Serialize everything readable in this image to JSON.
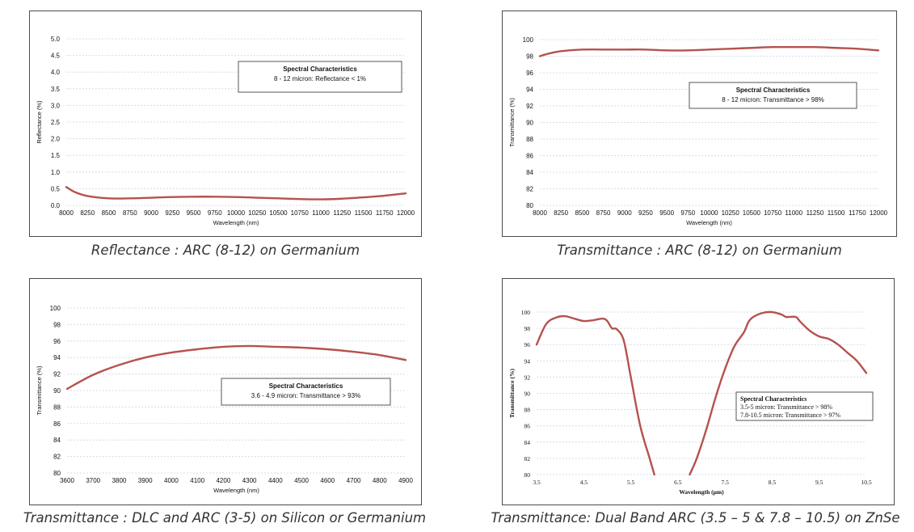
{
  "chart_data": [
    {
      "type": "line",
      "xlabel": "Wavelength (nm)",
      "ylabel": "Reflectance (%)",
      "xlim": [
        8000,
        12000
      ],
      "ylim": [
        0,
        5
      ],
      "xticks": [
        "8000",
        "8250",
        "8500",
        "8750",
        "9000",
        "9250",
        "9500",
        "9750",
        "10000",
        "10250",
        "10500",
        "10750",
        "11000",
        "11250",
        "11500",
        "11750",
        "12000"
      ],
      "yticks": [
        "0.0",
        "0.5",
        "1.0",
        "1.5",
        "2.0",
        "2.5",
        "3.0",
        "3.5",
        "4.0",
        "4.5",
        "5.0"
      ],
      "grid": true,
      "series": [
        {
          "x": [
            8000,
            8100,
            8250,
            8500,
            8750,
            9000,
            9250,
            9500,
            9750,
            10000,
            10250,
            10500,
            10750,
            11000,
            11250,
            11500,
            11750,
            12000
          ],
          "y": [
            0.55,
            0.4,
            0.28,
            0.21,
            0.21,
            0.23,
            0.25,
            0.26,
            0.26,
            0.25,
            0.23,
            0.21,
            0.19,
            0.18,
            0.2,
            0.24,
            0.29,
            0.36
          ]
        }
      ],
      "annotation": {
        "title": "Spectral Characteristics",
        "lines": [
          "8 - 12 micron: Reflectance < 1%"
        ]
      },
      "caption": "Reflectance : ARC (8-12) on Germanium"
    },
    {
      "type": "line",
      "xlabel": "Wavelength (nm)",
      "ylabel": "Transmittance (%)",
      "xlim": [
        8000,
        12000
      ],
      "ylim": [
        80,
        100
      ],
      "xticks": [
        "8000",
        "8250",
        "8500",
        "8750",
        "9000",
        "9250",
        "9500",
        "9750",
        "10000",
        "10250",
        "10500",
        "10750",
        "11000",
        "11250",
        "11500",
        "11750",
        "12000"
      ],
      "yticks": [
        "80",
        "82",
        "84",
        "86",
        "88",
        "90",
        "92",
        "94",
        "96",
        "98",
        "100"
      ],
      "grid": true,
      "series": [
        {
          "x": [
            8000,
            8100,
            8250,
            8500,
            8750,
            9000,
            9250,
            9500,
            9750,
            10000,
            10250,
            10500,
            10750,
            11000,
            11250,
            11500,
            11750,
            12000
          ],
          "y": [
            98.0,
            98.3,
            98.6,
            98.8,
            98.8,
            98.8,
            98.8,
            98.7,
            98.7,
            98.8,
            98.9,
            99.0,
            99.1,
            99.1,
            99.1,
            99.0,
            98.9,
            98.7
          ]
        }
      ],
      "annotation": {
        "title": "Spectral Characteristics",
        "lines": [
          "8 - 12 micron: Transmittance > 98%"
        ]
      },
      "caption": "Transmittance : ARC (8-12) on Germanium"
    },
    {
      "type": "line",
      "xlabel": "Wavelength (nm)",
      "ylabel": "Transmittance (%)",
      "xlim": [
        3600,
        4900
      ],
      "ylim": [
        80,
        100
      ],
      "xticks": [
        "3600",
        "3700",
        "3800",
        "3900",
        "4000",
        "4100",
        "4200",
        "4300",
        "4400",
        "4500",
        "4600",
        "4700",
        "4800",
        "4900"
      ],
      "yticks": [
        "80",
        "82",
        "84",
        "86",
        "88",
        "90",
        "92",
        "94",
        "96",
        "98",
        "100"
      ],
      "grid": true,
      "series": [
        {
          "x": [
            3600,
            3700,
            3800,
            3900,
            4000,
            4100,
            4200,
            4300,
            4400,
            4500,
            4600,
            4700,
            4800,
            4900
          ],
          "y": [
            90.2,
            91.9,
            93.1,
            94.0,
            94.6,
            95.0,
            95.3,
            95.4,
            95.3,
            95.2,
            95.0,
            94.7,
            94.3,
            93.7
          ]
        }
      ],
      "annotation": {
        "title": "Spectral Characteristics",
        "lines": [
          "3.6 - 4.9 micron: Transmittance > 93%"
        ]
      },
      "caption": "Transmittance : DLC  and ARC (3-5) on Silicon or  Germanium"
    },
    {
      "type": "line",
      "xlabel": "Wavelength (μm)",
      "ylabel": "Transmittance (%)",
      "xlim": [
        3.5,
        10.5
      ],
      "ylim": [
        80,
        100
      ],
      "xticks": [
        "3.5",
        "4.5",
        "5.5",
        "6.5",
        "7.5",
        "8.5",
        "9.5",
        "10.5"
      ],
      "yticks": [
        "80",
        "82",
        "84",
        "86",
        "88",
        "90",
        "92",
        "94",
        "96",
        "98",
        "100"
      ],
      "grid": true,
      "series": [
        {
          "x": [
            3.5,
            3.7,
            3.9,
            4.1,
            4.3,
            4.5,
            4.7,
            4.9,
            5.0,
            5.1,
            5.2,
            5.35,
            5.5,
            5.7,
            5.9,
            6.0
          ],
          "y": [
            96.0,
            98.5,
            99.3,
            99.5,
            99.2,
            98.9,
            99.0,
            99.2,
            98.9,
            98.0,
            97.9,
            96.5,
            92.0,
            86.0,
            82.0,
            80.0
          ]
        },
        {
          "x": [
            6.75,
            6.9,
            7.1,
            7.3,
            7.5,
            7.7,
            7.9,
            8.0,
            8.1,
            8.3,
            8.5,
            8.7,
            8.8,
            9.0,
            9.1,
            9.3,
            9.5,
            9.7,
            9.9,
            10.1,
            10.3,
            10.5
          ],
          "y": [
            80.0,
            82.0,
            85.5,
            89.5,
            93.0,
            95.8,
            97.5,
            98.8,
            99.4,
            99.9,
            100.0,
            99.7,
            99.4,
            99.4,
            98.8,
            97.7,
            97.0,
            96.7,
            96.0,
            95.0,
            94.0,
            92.5
          ]
        }
      ],
      "annotation": {
        "title": "Spectral Characteristics",
        "lines": [
          "3.5-5 micron: Transmittance > 98%",
          "7.8-10.5 micron: Transmittance > 97%"
        ]
      },
      "caption": "Transmittance: Dual Band ARC (3.5 – 5 & 7.8 – 10.5) on ZnSe"
    }
  ],
  "colors": {
    "curve": "#b5524e",
    "grid": "#d7dce8",
    "frame": "#4a4a4a"
  }
}
